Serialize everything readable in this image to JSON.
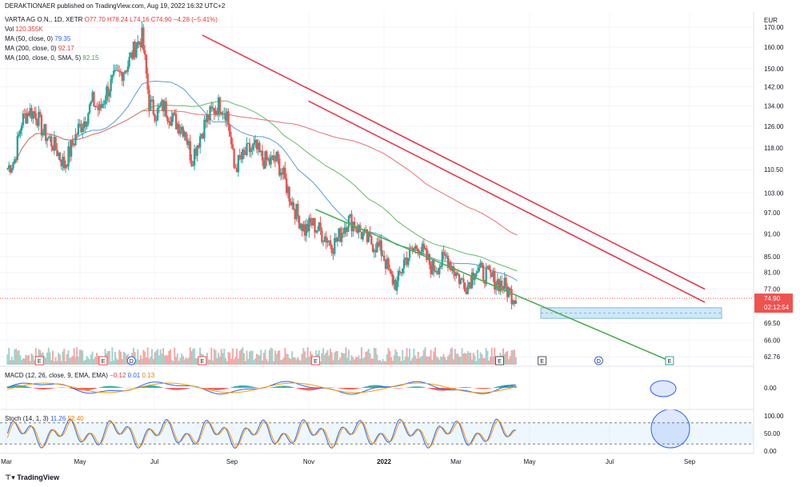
{
  "header": {
    "publisher": "DERAKTIONAER published on TradingView.com, Aug 19, 2022 16:32 UTC+2",
    "symbol": "VARTA AG O.N., 1D, XETR",
    "ohlc": "O77.70 H78.24 L74.16 C74.90 −4.28 (−5.41%)",
    "volume_label": "Vol",
    "volume_value": "120.355K",
    "ma50_label": "MA (50, close, 0)",
    "ma50_value": "79.35",
    "ma200_label": "MA (200, close, 0)",
    "ma200_value": "92.17",
    "ma100_label": "MA (100, close, 0, SMA, 5)",
    "ma100_value": "82.15",
    "macd_label": "MACD (12, 26, close, 9, EMA, EMA)",
    "macd_values": [
      "−0.12",
      "0.01",
      "0.13"
    ],
    "stoch_label": "Stoch (14, 1, 3)",
    "stoch_values": [
      "11.26",
      "52.40"
    ]
  },
  "footer": {
    "brand": "TradingView"
  },
  "colors": {
    "up": "#26a69a",
    "down": "#ef5350",
    "ma50": "#5b9bd5",
    "ma200": "#e57373",
    "ma100": "#66bb6a",
    "trend_red": "#e8394c",
    "trend_green": "#4caf50",
    "zone": "#cfe8f7",
    "macd": "#2962ff",
    "signal": "#ff9800",
    "stoch_k": "#2962ff",
    "stoch_d": "#ff9800"
  },
  "chart_data": {
    "type": "candlestick",
    "currency": "EUR",
    "price_axis": [
      "170.00",
      "160.00",
      "150.00",
      "142.00",
      "134.00",
      "126.00",
      "118.00",
      "110.50",
      "103.00",
      "97.00",
      "91.00",
      "85.00",
      "81.00",
      "77.00",
      "69.50",
      "66.00",
      "62.76"
    ],
    "last_price": "74.90",
    "countdown": "02:12:54",
    "price_scale": "log",
    "price_range": [
      61,
      178
    ],
    "time_axis": [
      "Mar",
      "May",
      "Jul",
      "Sep",
      "Nov",
      "2022",
      "Mar",
      "May",
      "Jul",
      "Sep"
    ],
    "macd_axis": [
      "0.00"
    ],
    "stoch_axis": [
      "100.00",
      "50.00",
      "0.00"
    ],
    "stoch_bands": [
      80,
      20
    ],
    "event_markers": [
      {
        "label": "E",
        "week": 5
      },
      {
        "label": "E",
        "week": 14
      },
      {
        "label": "D",
        "week": 18
      },
      {
        "label": "E",
        "week": 28
      },
      {
        "label": "E",
        "week": 44
      },
      {
        "label": "E",
        "week": 70
      },
      {
        "label": "E",
        "week": 76
      },
      {
        "label": "D",
        "week": 84
      },
      {
        "label": "E",
        "week": 94
      }
    ],
    "weekly_close": [
      111,
      114,
      128,
      132,
      131,
      124,
      121,
      117,
      112,
      118,
      125,
      129,
      136,
      132,
      140,
      145,
      148,
      152,
      160,
      165,
      135,
      131,
      134,
      130,
      127,
      125,
      114,
      121,
      128,
      132,
      135,
      131,
      111,
      114,
      117,
      118,
      114,
      113,
      114,
      108,
      101,
      96,
      92,
      94,
      92,
      90,
      88,
      91,
      95,
      94,
      91,
      89,
      88,
      86,
      80,
      78,
      84,
      86,
      88,
      85,
      82,
      83,
      85,
      82,
      79,
      78,
      82,
      81,
      80,
      79,
      78,
      76,
      75
    ],
    "support_zone": [
      70.5,
      72.8
    ],
    "trend_lines": [
      {
        "name": "upper-1",
        "start": {
          "week": 28,
          "price": 166
        },
        "end": {
          "week": 99,
          "price": 77
        }
      },
      {
        "name": "upper-2",
        "start": {
          "week": 43,
          "price": 136
        },
        "end": {
          "week": 99,
          "price": 74
        }
      },
      {
        "name": "lower",
        "start": {
          "week": 44,
          "price": 98
        },
        "end": {
          "week": 94,
          "price": 62
        }
      }
    ]
  }
}
